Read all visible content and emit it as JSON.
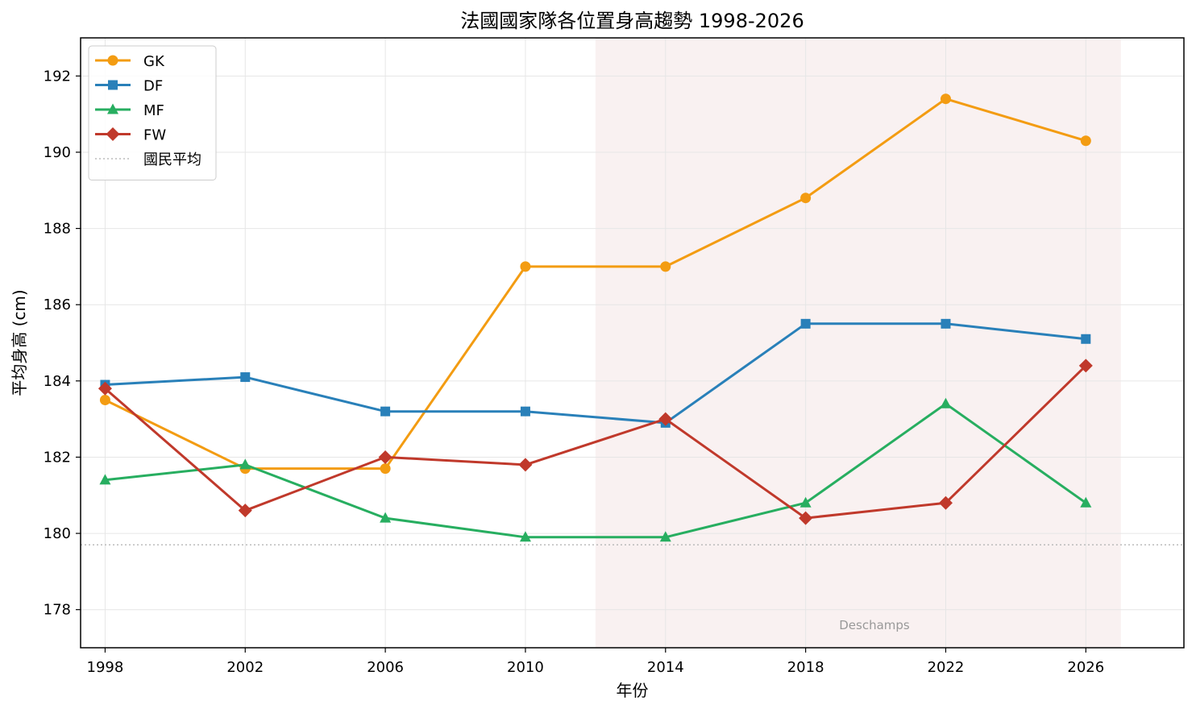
{
  "chart_data": {
    "type": "line",
    "title": "法國國家隊各位置身高趨勢 1998-2026",
    "xlabel": "年份",
    "ylabel": "平均身高 (cm)",
    "x": [
      1998,
      2002,
      2006,
      2010,
      2014,
      2018,
      2022,
      2026
    ],
    "xlim": [
      1997.3,
      2028.8
    ],
    "ylim": [
      177,
      193
    ],
    "yticks": [
      178,
      180,
      182,
      184,
      186,
      188,
      190,
      192
    ],
    "grid": true,
    "legend_position": "top-left",
    "series": [
      {
        "name": "GK",
        "color": "#f39c12",
        "marker": "circle",
        "values": [
          183.5,
          181.7,
          181.7,
          187.0,
          187.0,
          188.8,
          191.4,
          190.3
        ]
      },
      {
        "name": "DF",
        "color": "#2980b9",
        "marker": "square",
        "values": [
          183.9,
          184.1,
          183.2,
          183.2,
          182.9,
          185.5,
          185.5,
          185.1
        ]
      },
      {
        "name": "MF",
        "color": "#27ae60",
        "marker": "triangle",
        "values": [
          181.4,
          181.8,
          180.4,
          179.9,
          179.9,
          180.8,
          183.4,
          180.8
        ]
      },
      {
        "name": "FW",
        "color": "#c0392b",
        "marker": "diamond",
        "values": [
          183.8,
          180.6,
          182.0,
          181.8,
          183.0,
          180.4,
          180.8,
          184.4
        ]
      }
    ],
    "reference_line": {
      "name": "國民平均",
      "value": 179.7,
      "color": "#bbbbbb"
    },
    "shaded_region": {
      "label": "Deschamps",
      "x_start": 2012,
      "x_end": 2027,
      "color": "#f9f1f1"
    }
  }
}
